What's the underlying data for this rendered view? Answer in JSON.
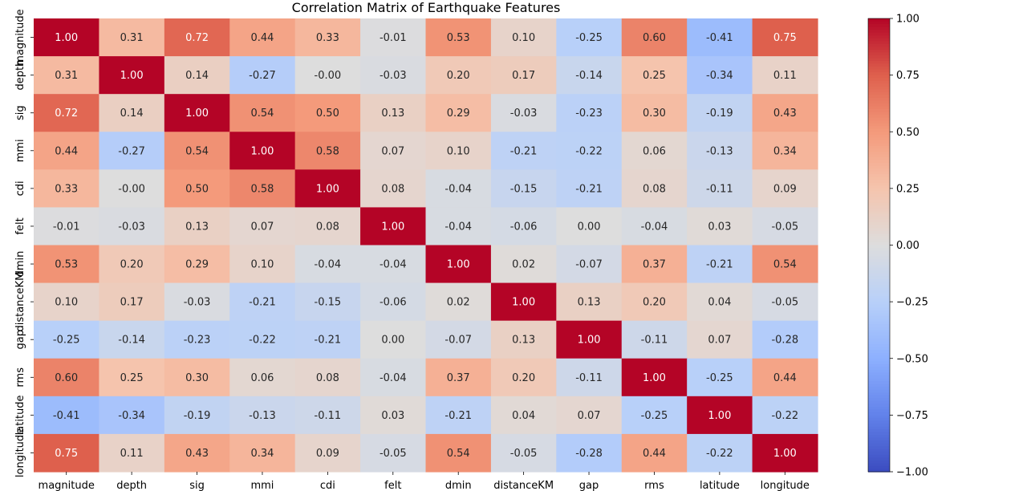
{
  "chart_data": {
    "type": "heatmap",
    "title": "Correlation Matrix of Earthquake Features",
    "xlabel": "",
    "ylabel": "",
    "x_categories": [
      "magnitude",
      "depth",
      "sig",
      "mmi",
      "cdi",
      "felt",
      "dmin",
      "distanceKM",
      "gap",
      "rms",
      "latitude",
      "longitude"
    ],
    "y_categories": [
      "magnitude",
      "depth",
      "sig",
      "mmi",
      "cdi",
      "felt",
      "dmin",
      "distanceKM",
      "gap",
      "rms",
      "latitude",
      "longitude"
    ],
    "values": [
      [
        1.0,
        0.31,
        0.72,
        0.44,
        0.33,
        -0.01,
        0.53,
        0.1,
        -0.25,
        0.6,
        -0.41,
        0.75
      ],
      [
        0.31,
        1.0,
        0.14,
        -0.27,
        -0.0,
        -0.03,
        0.2,
        0.17,
        -0.14,
        0.25,
        -0.34,
        0.11
      ],
      [
        0.72,
        0.14,
        1.0,
        0.54,
        0.5,
        0.13,
        0.29,
        -0.03,
        -0.23,
        0.3,
        -0.19,
        0.43
      ],
      [
        0.44,
        -0.27,
        0.54,
        1.0,
        0.58,
        0.07,
        0.1,
        -0.21,
        -0.22,
        0.06,
        -0.13,
        0.34
      ],
      [
        0.33,
        -0.0,
        0.5,
        0.58,
        1.0,
        0.08,
        -0.04,
        -0.15,
        -0.21,
        0.08,
        -0.11,
        0.09
      ],
      [
        -0.01,
        -0.03,
        0.13,
        0.07,
        0.08,
        1.0,
        -0.04,
        -0.06,
        0.0,
        -0.04,
        0.03,
        -0.05
      ],
      [
        0.53,
        0.2,
        0.29,
        0.1,
        -0.04,
        -0.04,
        1.0,
        0.02,
        -0.07,
        0.37,
        -0.21,
        0.54
      ],
      [
        0.1,
        0.17,
        -0.03,
        -0.21,
        -0.15,
        -0.06,
        0.02,
        1.0,
        0.13,
        0.2,
        0.04,
        -0.05
      ],
      [
        -0.25,
        -0.14,
        -0.23,
        -0.22,
        -0.21,
        0.0,
        -0.07,
        0.13,
        1.0,
        -0.11,
        0.07,
        -0.28
      ],
      [
        0.6,
        0.25,
        0.3,
        0.06,
        0.08,
        -0.04,
        0.37,
        0.2,
        -0.11,
        1.0,
        -0.25,
        0.44
      ],
      [
        -0.41,
        -0.34,
        -0.19,
        -0.13,
        -0.11,
        0.03,
        -0.21,
        0.04,
        0.07,
        -0.25,
        1.0,
        -0.22
      ],
      [
        0.75,
        0.11,
        0.43,
        0.34,
        0.09,
        -0.05,
        0.54,
        -0.05,
        -0.28,
        0.44,
        -0.22,
        1.0
      ]
    ],
    "cell_labels": [
      [
        "1.00",
        "0.31",
        "0.72",
        "0.44",
        "0.33",
        "-0.01",
        "0.53",
        "0.10",
        "-0.25",
        "0.60",
        "-0.41",
        "0.75"
      ],
      [
        "0.31",
        "1.00",
        "0.14",
        "-0.27",
        "-0.00",
        "-0.03",
        "0.20",
        "0.17",
        "-0.14",
        "0.25",
        "-0.34",
        "0.11"
      ],
      [
        "0.72",
        "0.14",
        "1.00",
        "0.54",
        "0.50",
        "0.13",
        "0.29",
        "-0.03",
        "-0.23",
        "0.30",
        "-0.19",
        "0.43"
      ],
      [
        "0.44",
        "-0.27",
        "0.54",
        "1.00",
        "0.58",
        "0.07",
        "0.10",
        "-0.21",
        "-0.22",
        "0.06",
        "-0.13",
        "0.34"
      ],
      [
        "0.33",
        "-0.00",
        "0.50",
        "0.58",
        "1.00",
        "0.08",
        "-0.04",
        "-0.15",
        "-0.21",
        "0.08",
        "-0.11",
        "0.09"
      ],
      [
        "-0.01",
        "-0.03",
        "0.13",
        "0.07",
        "0.08",
        "1.00",
        "-0.04",
        "-0.06",
        "0.00",
        "-0.04",
        "0.03",
        "-0.05"
      ],
      [
        "0.53",
        "0.20",
        "0.29",
        "0.10",
        "-0.04",
        "-0.04",
        "1.00",
        "0.02",
        "-0.07",
        "0.37",
        "-0.21",
        "0.54"
      ],
      [
        "0.10",
        "0.17",
        "-0.03",
        "-0.21",
        "-0.15",
        "-0.06",
        "0.02",
        "1.00",
        "0.13",
        "0.20",
        "0.04",
        "-0.05"
      ],
      [
        "-0.25",
        "-0.14",
        "-0.23",
        "-0.22",
        "-0.21",
        "0.00",
        "-0.07",
        "0.13",
        "1.00",
        "-0.11",
        "0.07",
        "-0.28"
      ],
      [
        "0.60",
        "0.25",
        "0.30",
        "0.06",
        "0.08",
        "-0.04",
        "0.37",
        "0.20",
        "-0.11",
        "1.00",
        "-0.25",
        "0.44"
      ],
      [
        "-0.41",
        "-0.34",
        "-0.19",
        "-0.13",
        "-0.11",
        "0.03",
        "-0.21",
        "0.04",
        "0.07",
        "-0.25",
        "1.00",
        "-0.22"
      ],
      [
        "0.75",
        "0.11",
        "0.43",
        "0.34",
        "0.09",
        "-0.05",
        "0.54",
        "-0.05",
        "-0.28",
        "0.44",
        "-0.22",
        "1.00"
      ]
    ],
    "colormap": "coolwarm",
    "vmin": -1.0,
    "vmax": 1.0,
    "colorbar_ticks": [
      1.0,
      0.75,
      0.5,
      0.25,
      0.0,
      -0.25,
      -0.5,
      -0.75,
      -1.0
    ],
    "colorbar_tick_labels": [
      "1.00",
      "0.75",
      "0.50",
      "0.25",
      "0.00",
      "−0.25",
      "−0.50",
      "−0.75",
      "−1.00"
    ],
    "legend": "colorbar-right",
    "grid": false
  }
}
